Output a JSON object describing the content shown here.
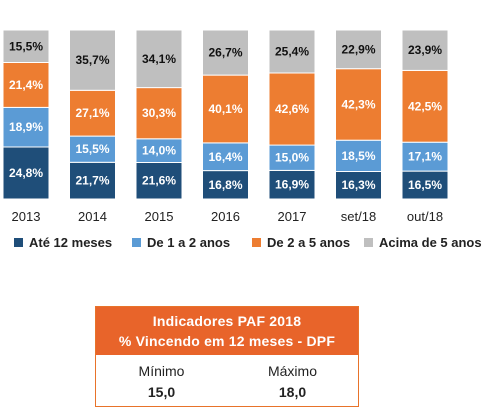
{
  "chart_data": {
    "type": "bar",
    "stacked": true,
    "normalized": true,
    "categories": [
      "2013",
      "2014",
      "2015",
      "2016",
      "2017",
      "set/18",
      "out/18"
    ],
    "series": [
      {
        "name": "Até 12 meses",
        "color": "#1f4e79",
        "values": [
          24.8,
          21.7,
          21.6,
          16.8,
          16.9,
          16.3,
          16.5
        ],
        "labels": [
          "24,8%",
          "21,7%",
          "21,6%",
          "16,8%",
          "16,9%",
          "16,3%",
          "16,5%"
        ]
      },
      {
        "name": "De 1 a 2 anos",
        "color": "#5b9bd5",
        "values": [
          18.9,
          15.5,
          14.0,
          16.4,
          15.0,
          18.5,
          17.1
        ],
        "labels": [
          "18,9%",
          "15,5%",
          "14,0%",
          "16,4%",
          "15,0%",
          "18,5%",
          "17,1%"
        ]
      },
      {
        "name": "De 2 a 5 anos",
        "color": "#ed7d31",
        "values": [
          21.4,
          27.1,
          30.3,
          40.1,
          42.6,
          42.3,
          42.5
        ],
        "labels": [
          "21,4%",
          "27,1%",
          "30,3%",
          "40,1%",
          "42,6%",
          "42,3%",
          "42,5%"
        ]
      },
      {
        "name": "Acima de 5 anos",
        "color": "#bfbfbf",
        "values": [
          15.5,
          35.7,
          34.1,
          26.7,
          25.4,
          22.9,
          23.9
        ],
        "labels": [
          "15,5%",
          "35,7%",
          "34,1%",
          "26,7%",
          "25,4%",
          "22,9%",
          "23,9%"
        ]
      }
    ],
    "legend_position": "bottom",
    "grid": false
  },
  "indicators": {
    "title_line1": "Indicadores PAF 2018",
    "title_line2": "% Vincendo em 12 meses - DPF",
    "min_label": "Mínimo",
    "min_value": "15,0",
    "max_label": "Máximo",
    "max_value": "18,0",
    "header_color": "#e8642a"
  }
}
